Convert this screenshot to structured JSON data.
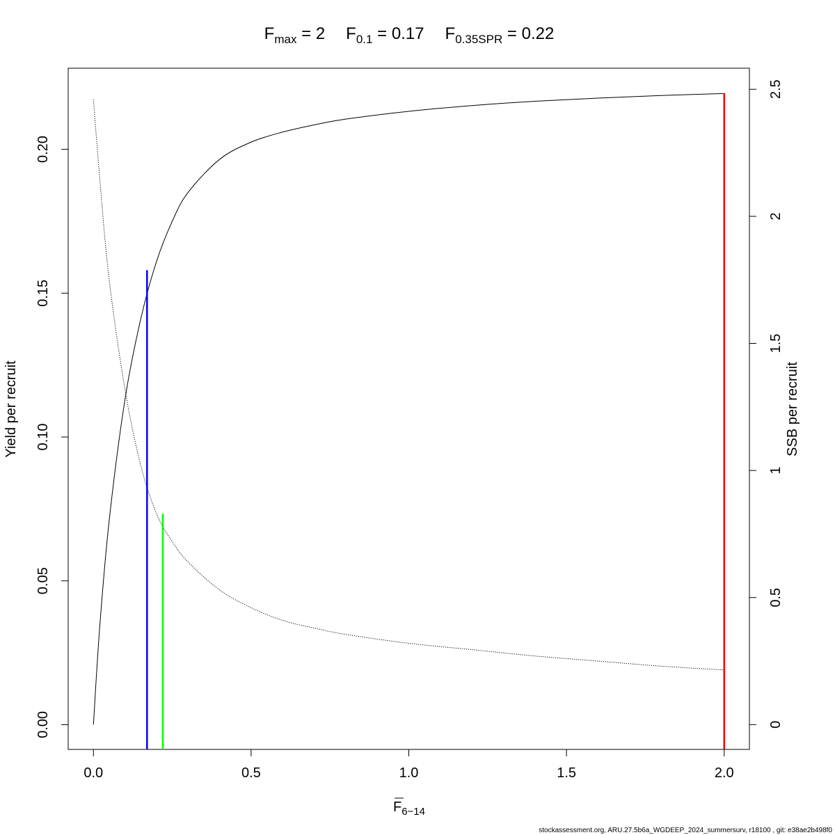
{
  "chart_data": {
    "type": "line",
    "title_parts": [
      {
        "base": "F",
        "sub": "max",
        "eq": " = 2"
      },
      {
        "base": "F",
        "sub": "0.1",
        "eq": " = 0.17"
      },
      {
        "base": "F",
        "sub": "0.35SPR",
        "eq": " = 0.22"
      }
    ],
    "xlabel": {
      "base": "F",
      "sub": "6−14"
    },
    "ylabel_left": "Yield per recruit",
    "ylabel_right": "SSB per recruit",
    "xlim": [
      -0.08,
      2.08
    ],
    "ylim_left": [
      -0.0086,
      0.2282
    ],
    "ylim_right": [
      -0.0976,
      2.5829
    ],
    "x_ticks": [
      {
        "value": 0.0,
        "label": "0.0"
      },
      {
        "value": 0.5,
        "label": "0.5"
      },
      {
        "value": 1.0,
        "label": "1.0"
      },
      {
        "value": 1.5,
        "label": "1.5"
      },
      {
        "value": 2.0,
        "label": "2.0"
      }
    ],
    "y_left_ticks": [
      {
        "value": 0.0,
        "label": "0.00"
      },
      {
        "value": 0.05,
        "label": "0.05"
      },
      {
        "value": 0.1,
        "label": "0.10"
      },
      {
        "value": 0.15,
        "label": "0.15"
      },
      {
        "value": 0.2,
        "label": "0.20"
      }
    ],
    "y_right_ticks": [
      {
        "value": 0.0,
        "label": "0"
      },
      {
        "value": 0.5,
        "label": "0.5"
      },
      {
        "value": 1.0,
        "label": "1"
      },
      {
        "value": 1.5,
        "label": "1.5"
      },
      {
        "value": 2.0,
        "label": "2"
      },
      {
        "value": 2.5,
        "label": "2.5"
      }
    ],
    "series": [
      {
        "axis": "left",
        "style": "solid",
        "color": "#000000",
        "x": [
          0,
          0.02,
          0.05,
          0.1,
          0.15,
          0.2,
          0.25,
          0.3,
          0.4,
          0.5,
          0.6,
          0.7,
          0.8,
          1.0,
          1.2,
          1.4,
          1.6,
          1.8,
          2.0
        ],
        "y": [
          0,
          0.034,
          0.071,
          0.113,
          0.141,
          0.161,
          0.175,
          0.185,
          0.1965,
          0.2025,
          0.206,
          0.2085,
          0.2105,
          0.2132,
          0.2152,
          0.2167,
          0.2178,
          0.2187,
          0.2194
        ]
      },
      {
        "axis": "right",
        "style": "dotted",
        "color": "#000000",
        "x": [
          0,
          0.02,
          0.05,
          0.1,
          0.15,
          0.2,
          0.25,
          0.3,
          0.4,
          0.5,
          0.6,
          0.7,
          0.8,
          1.0,
          1.2,
          1.4,
          1.6,
          1.8,
          2.0
        ],
        "y": [
          2.46,
          2.15,
          1.75,
          1.32,
          1.02,
          0.83,
          0.72,
          0.64,
          0.53,
          0.46,
          0.41,
          0.38,
          0.355,
          0.32,
          0.295,
          0.27,
          0.25,
          0.23,
          0.215
        ]
      }
    ],
    "reference_lines": [
      {
        "x": 0.17,
        "axis": "left",
        "y_top": 0.158,
        "color": "#0000ff"
      },
      {
        "x": 0.22,
        "axis": "right",
        "y_top": 0.83,
        "color": "#00ff00"
      },
      {
        "x": 2.0,
        "axis": "left",
        "y_top": 0.2195,
        "color": "#ff0000"
      }
    ],
    "footer": "stockassessment.org, ARU.27.5b6a_WGDEEP_2024_summersurv, r18100 , git: e38ae2b498f0"
  }
}
